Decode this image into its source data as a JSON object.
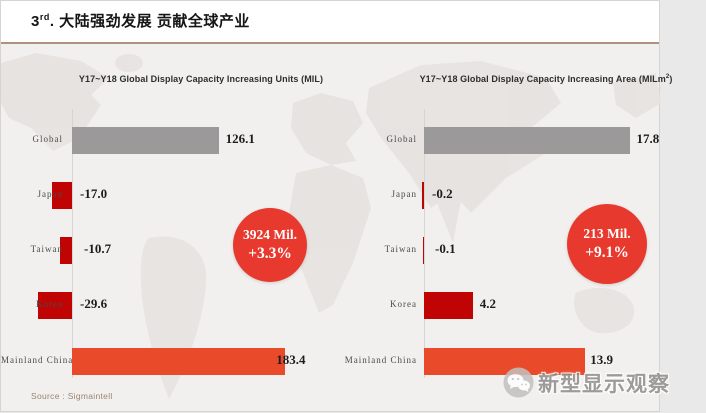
{
  "header": {
    "title_num": "3",
    "title_sup": "rd",
    "title_rest": ". 大陆强劲发展 贡献全球产业"
  },
  "charts": [
    {
      "title_main": "Y17~Y18 Global Display Capacity Increasing Units (MIL",
      "title_sup": "",
      "title_close": ")",
      "badge": {
        "line1": "3924 Mil.",
        "line2": "+3.3%"
      },
      "rows": [
        {
          "label": "Global",
          "value_display": "126.1",
          "color": "gray"
        },
        {
          "label": "Japan",
          "value_display": "-17.0",
          "color": "red"
        },
        {
          "label": "Taiwan",
          "value_display": "-10.7",
          "color": "red"
        },
        {
          "label": "Korea",
          "value_display": "-29.6",
          "color": "red"
        },
        {
          "label": "Mainland China",
          "value_display": "183.4",
          "color": "orange"
        }
      ]
    },
    {
      "title_main": "Y17~Y18 Global Display Capacity Increasing Area (MILm",
      "title_sup": "2",
      "title_close": ")",
      "badge": {
        "line1": "213 Mil.",
        "line2": "+9.1%"
      },
      "rows": [
        {
          "label": "Global",
          "value_display": "17.8",
          "color": "gray"
        },
        {
          "label": "Japan",
          "value_display": "-0.2",
          "color": "red"
        },
        {
          "label": "Taiwan",
          "value_display": "-0.1",
          "color": "red"
        },
        {
          "label": "Korea",
          "value_display": "4.2",
          "color": "red"
        },
        {
          "label": "Mainland China",
          "value_display": "13.9",
          "color": "orange"
        }
      ]
    }
  ],
  "chart_data": [
    {
      "type": "bar",
      "orientation": "horizontal",
      "title": "Y17~Y18 Global Display Capacity Increasing Units (MIL)",
      "categories": [
        "Global",
        "Japan",
        "Taiwan",
        "Korea",
        "Mainland China"
      ],
      "values": [
        126.1,
        -17.0,
        -10.7,
        -29.6,
        183.4
      ],
      "unit": "MIL",
      "annotation": "3924 Mil. +3.3%",
      "legend": "none",
      "grid": false
    },
    {
      "type": "bar",
      "orientation": "horizontal",
      "title": "Y17~Y18 Global Display Capacity Increasing Area (MILm²)",
      "categories": [
        "Global",
        "Japan",
        "Taiwan",
        "Korea",
        "Mainland China"
      ],
      "values": [
        17.8,
        -0.2,
        -0.1,
        4.2,
        13.9
      ],
      "unit": "MILm²",
      "annotation": "213 Mil. +9.1%",
      "legend": "none",
      "grid": false
    }
  ],
  "footer": {
    "source": "Source : Sigmaintell",
    "watermark": "新型显示观察",
    "watermark_icon": "wechat-icon"
  },
  "colors": {
    "gray": "#9b9999",
    "red": "#c00404",
    "orange": "#e84a2a",
    "badge": "#e8392e",
    "divider": "#b0907f"
  }
}
